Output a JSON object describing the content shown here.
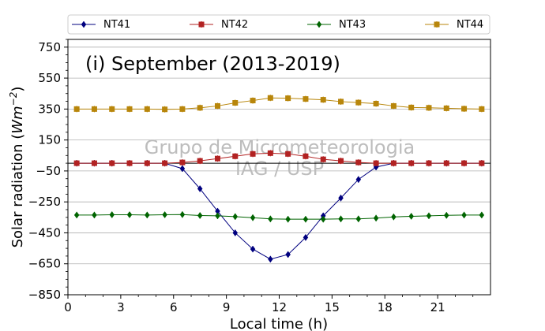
{
  "chart_data": {
    "type": "line",
    "title": "(i) September (2013-2019)",
    "xlabel": "Local time (h)",
    "ylabel_main": "Solar radiation (",
    "ylabel_unit_base": "Wm",
    "ylabel_unit_exp": "−2",
    "ylabel_close": ")",
    "xlim": [
      0,
      24
    ],
    "ylim": [
      -850,
      800
    ],
    "xticks": [
      0,
      3,
      6,
      9,
      12,
      15,
      18,
      21
    ],
    "xtick_labels": [
      "0",
      "3",
      "6",
      "9",
      "12",
      "15",
      "18",
      "21"
    ],
    "yticks": [
      -850,
      -650,
      -450,
      -250,
      -50,
      150,
      350,
      550,
      750
    ],
    "ytick_labels": [
      "−850",
      "−650",
      "−450",
      "−250",
      "−50",
      "150",
      "350",
      "550",
      "750"
    ],
    "grid": "horizontal",
    "zero_line": 0,
    "legend_position": "top",
    "watermark": [
      "Grupo de Micrometeorologia",
      "IAG / USP"
    ],
    "x": [
      0.5,
      1.5,
      2.5,
      3.5,
      4.5,
      5.5,
      6.5,
      7.5,
      8.5,
      9.5,
      10.5,
      11.5,
      12.5,
      13.5,
      14.5,
      15.5,
      16.5,
      17.5,
      18.5,
      19.5,
      20.5,
      21.5,
      22.5,
      23.5
    ],
    "series": [
      {
        "name": "NT41",
        "color": "#00007f",
        "marker": "diamond",
        "values": [
          0,
          0,
          0,
          0,
          0,
          0,
          -35,
          -165,
          -310,
          -450,
          -555,
          -620,
          -590,
          -480,
          -340,
          -225,
          -105,
          -25,
          0,
          0,
          0,
          0,
          0,
          0
        ]
      },
      {
        "name": "NT42",
        "color": "#b22222",
        "marker": "square",
        "values": [
          0,
          0,
          0,
          0,
          0,
          0,
          5,
          15,
          30,
          45,
          60,
          65,
          60,
          45,
          25,
          15,
          5,
          0,
          0,
          0,
          0,
          0,
          0,
          0
        ]
      },
      {
        "name": "NT43",
        "color": "#006400",
        "marker": "diamond",
        "values": [
          -335,
          -335,
          -333,
          -333,
          -335,
          -333,
          -332,
          -338,
          -340,
          -345,
          -352,
          -360,
          -362,
          -362,
          -362,
          -360,
          -360,
          -355,
          -347,
          -343,
          -340,
          -337,
          -335,
          -335
        ]
      },
      {
        "name": "NT44",
        "color": "#b8860b",
        "marker": "square",
        "values": [
          350,
          350,
          350,
          350,
          350,
          348,
          350,
          358,
          370,
          390,
          405,
          422,
          420,
          415,
          410,
          398,
          392,
          385,
          370,
          360,
          358,
          355,
          352,
          350
        ]
      }
    ]
  }
}
